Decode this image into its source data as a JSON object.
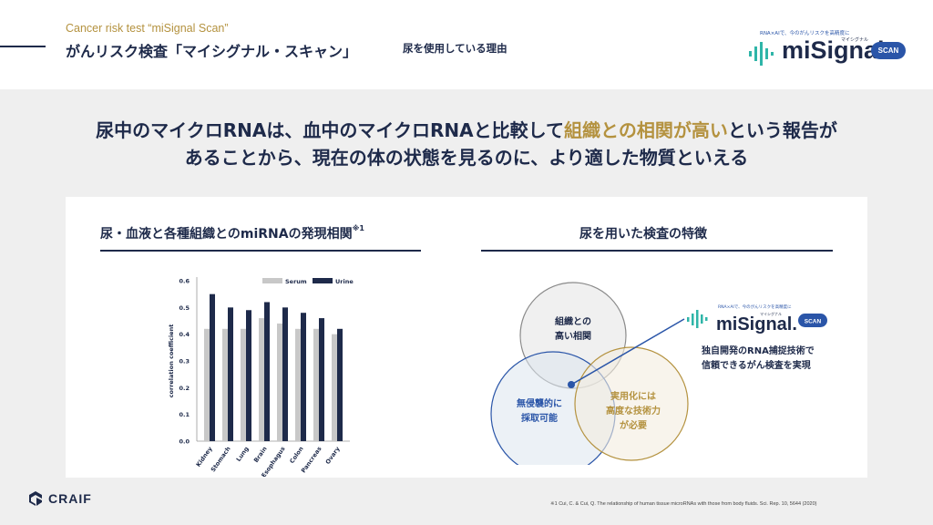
{
  "header": {
    "kicker": "Cancer risk test “miSignal Scan”",
    "title": "がんリスク検査「マイシグナル・スキャン」",
    "subtitle": "尿を使用している理由"
  },
  "logo": {
    "tagline": "RNA×AIで、今のがんリスクを高精度に",
    "wordmark": "miSignal.",
    "kana": "マイシグナル",
    "badge": "SCAN"
  },
  "headline": {
    "line1_pre": "尿中のマイクロRNAは、血中のマイクロRNAと比較して",
    "line1_highlight": "組織との相関が高い",
    "line1_post": "という報告が",
    "line2": "あることから、現在の体の状態を見るのに、より適した物質といえる"
  },
  "left_section": {
    "title": "尿・血液と各種組織とのmiRNAの発現相関",
    "title_note": "※1"
  },
  "right_section": {
    "title": "尿を用いた検査の特徴"
  },
  "colors": {
    "navy": "#1e2a4a",
    "gold": "#b4923f",
    "blue": "#2a55a8",
    "serum_gray": "#c8c8c8",
    "urine_navy": "#1e2a4a"
  },
  "chart_data": {
    "type": "bar",
    "categories": [
      "Kidney",
      "Stomach",
      "Lung",
      "Brain",
      "Esophagus",
      "Colon",
      "Pancreas",
      "Ovary"
    ],
    "series": [
      {
        "name": "Serum",
        "values": [
          0.42,
          0.42,
          0.42,
          0.46,
          0.44,
          0.42,
          0.42,
          0.4
        ]
      },
      {
        "name": "Urine",
        "values": [
          0.55,
          0.5,
          0.49,
          0.52,
          0.5,
          0.48,
          0.46,
          0.42
        ]
      }
    ],
    "yticks": [
      "0.0",
      "0.1",
      "0.2",
      "0.3",
      "0.4",
      "0.5",
      "0.6"
    ],
    "ylim": [
      0,
      0.6
    ],
    "ylabel": "correlation coefficient",
    "xlabel": "",
    "legend": "top",
    "grid": false
  },
  "venn": {
    "circle_top": [
      "組織との",
      "高い相関"
    ],
    "circle_left": [
      "無侵襲的に",
      "採取可能"
    ],
    "circle_right": [
      "実用化には",
      "高度な技術力",
      "が必要"
    ],
    "callout_tagline": "RNA×AIで、今のがんリスクを高精度に",
    "callout_wordmark": "miSignal.",
    "callout_kana": "マイシグナル",
    "callout_badge": "SCAN",
    "callout_text": [
      "独自開発のRNA捕捉技術で",
      "信頼できるがん検査を実現"
    ]
  },
  "footer": {
    "brand": "CRAIF",
    "footnote": "※1 Cui, C. & Cui, Q. The relationship of human tissue microRNAs with those from body fluids. Sci. Rep. 10, 5644 (2020)"
  }
}
